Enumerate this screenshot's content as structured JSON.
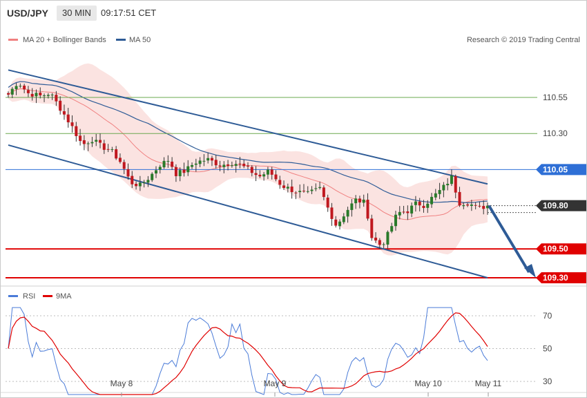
{
  "header": {
    "symbol": "USD/JPY",
    "timeframe": "30 MIN",
    "clock": "09:17:51 CET"
  },
  "price_legend": {
    "bollinger_label": "MA 20 + Bollinger Bands",
    "ma50_label": "MA 50",
    "credit": "Research © 2019 Trading Central"
  },
  "rsi_legend": {
    "rsi_label": "RSI",
    "ma_label": "9MA"
  },
  "colors": {
    "bollinger": "#f08080",
    "band_fill": "#fbe3e1",
    "ma50": "#2e5b96",
    "channel": "#2e5b96",
    "up_candle": "#2a7a2a",
    "down_candle": "#c0181f",
    "level_green": "#6aa84f",
    "pivot": "#2e6fd6",
    "support": "#e00000",
    "last_price": "#333333",
    "rsi": "#4a7bd8",
    "rsi_ma": "#e00000"
  },
  "chart_data": [
    {
      "type": "candlestick",
      "name": "USD/JPY 30 MIN",
      "x_ticks": [
        "May 8",
        "May 9",
        "May 10",
        "May 11"
      ],
      "y_range": [
        109.22,
        110.72
      ],
      "levels": [
        {
          "value": 110.55,
          "label": "110.55",
          "style": "resistance"
        },
        {
          "value": 110.3,
          "label": "110.30",
          "style": "resistance"
        },
        {
          "value": 110.05,
          "label": "110.05",
          "style": "pivot"
        },
        {
          "value": 109.5,
          "label": "109.50",
          "style": "support"
        },
        {
          "value": 109.3,
          "label": "109.30",
          "style": "support"
        }
      ],
      "last_price": {
        "value": 109.8,
        "label": "109.80"
      },
      "forecast_arrow": {
        "from_value": 109.8,
        "to_value": 109.3
      },
      "channel": {
        "upper": [
          110.74,
          109.95
        ],
        "lower": [
          110.22,
          109.3
        ]
      }
    },
    {
      "type": "line",
      "name": "RSI",
      "y_ticks": [
        30,
        50,
        70
      ],
      "y_range": [
        15,
        85
      ],
      "x_ticks": [
        "May 8",
        "May 9",
        "May 10",
        "May 11"
      ]
    }
  ]
}
